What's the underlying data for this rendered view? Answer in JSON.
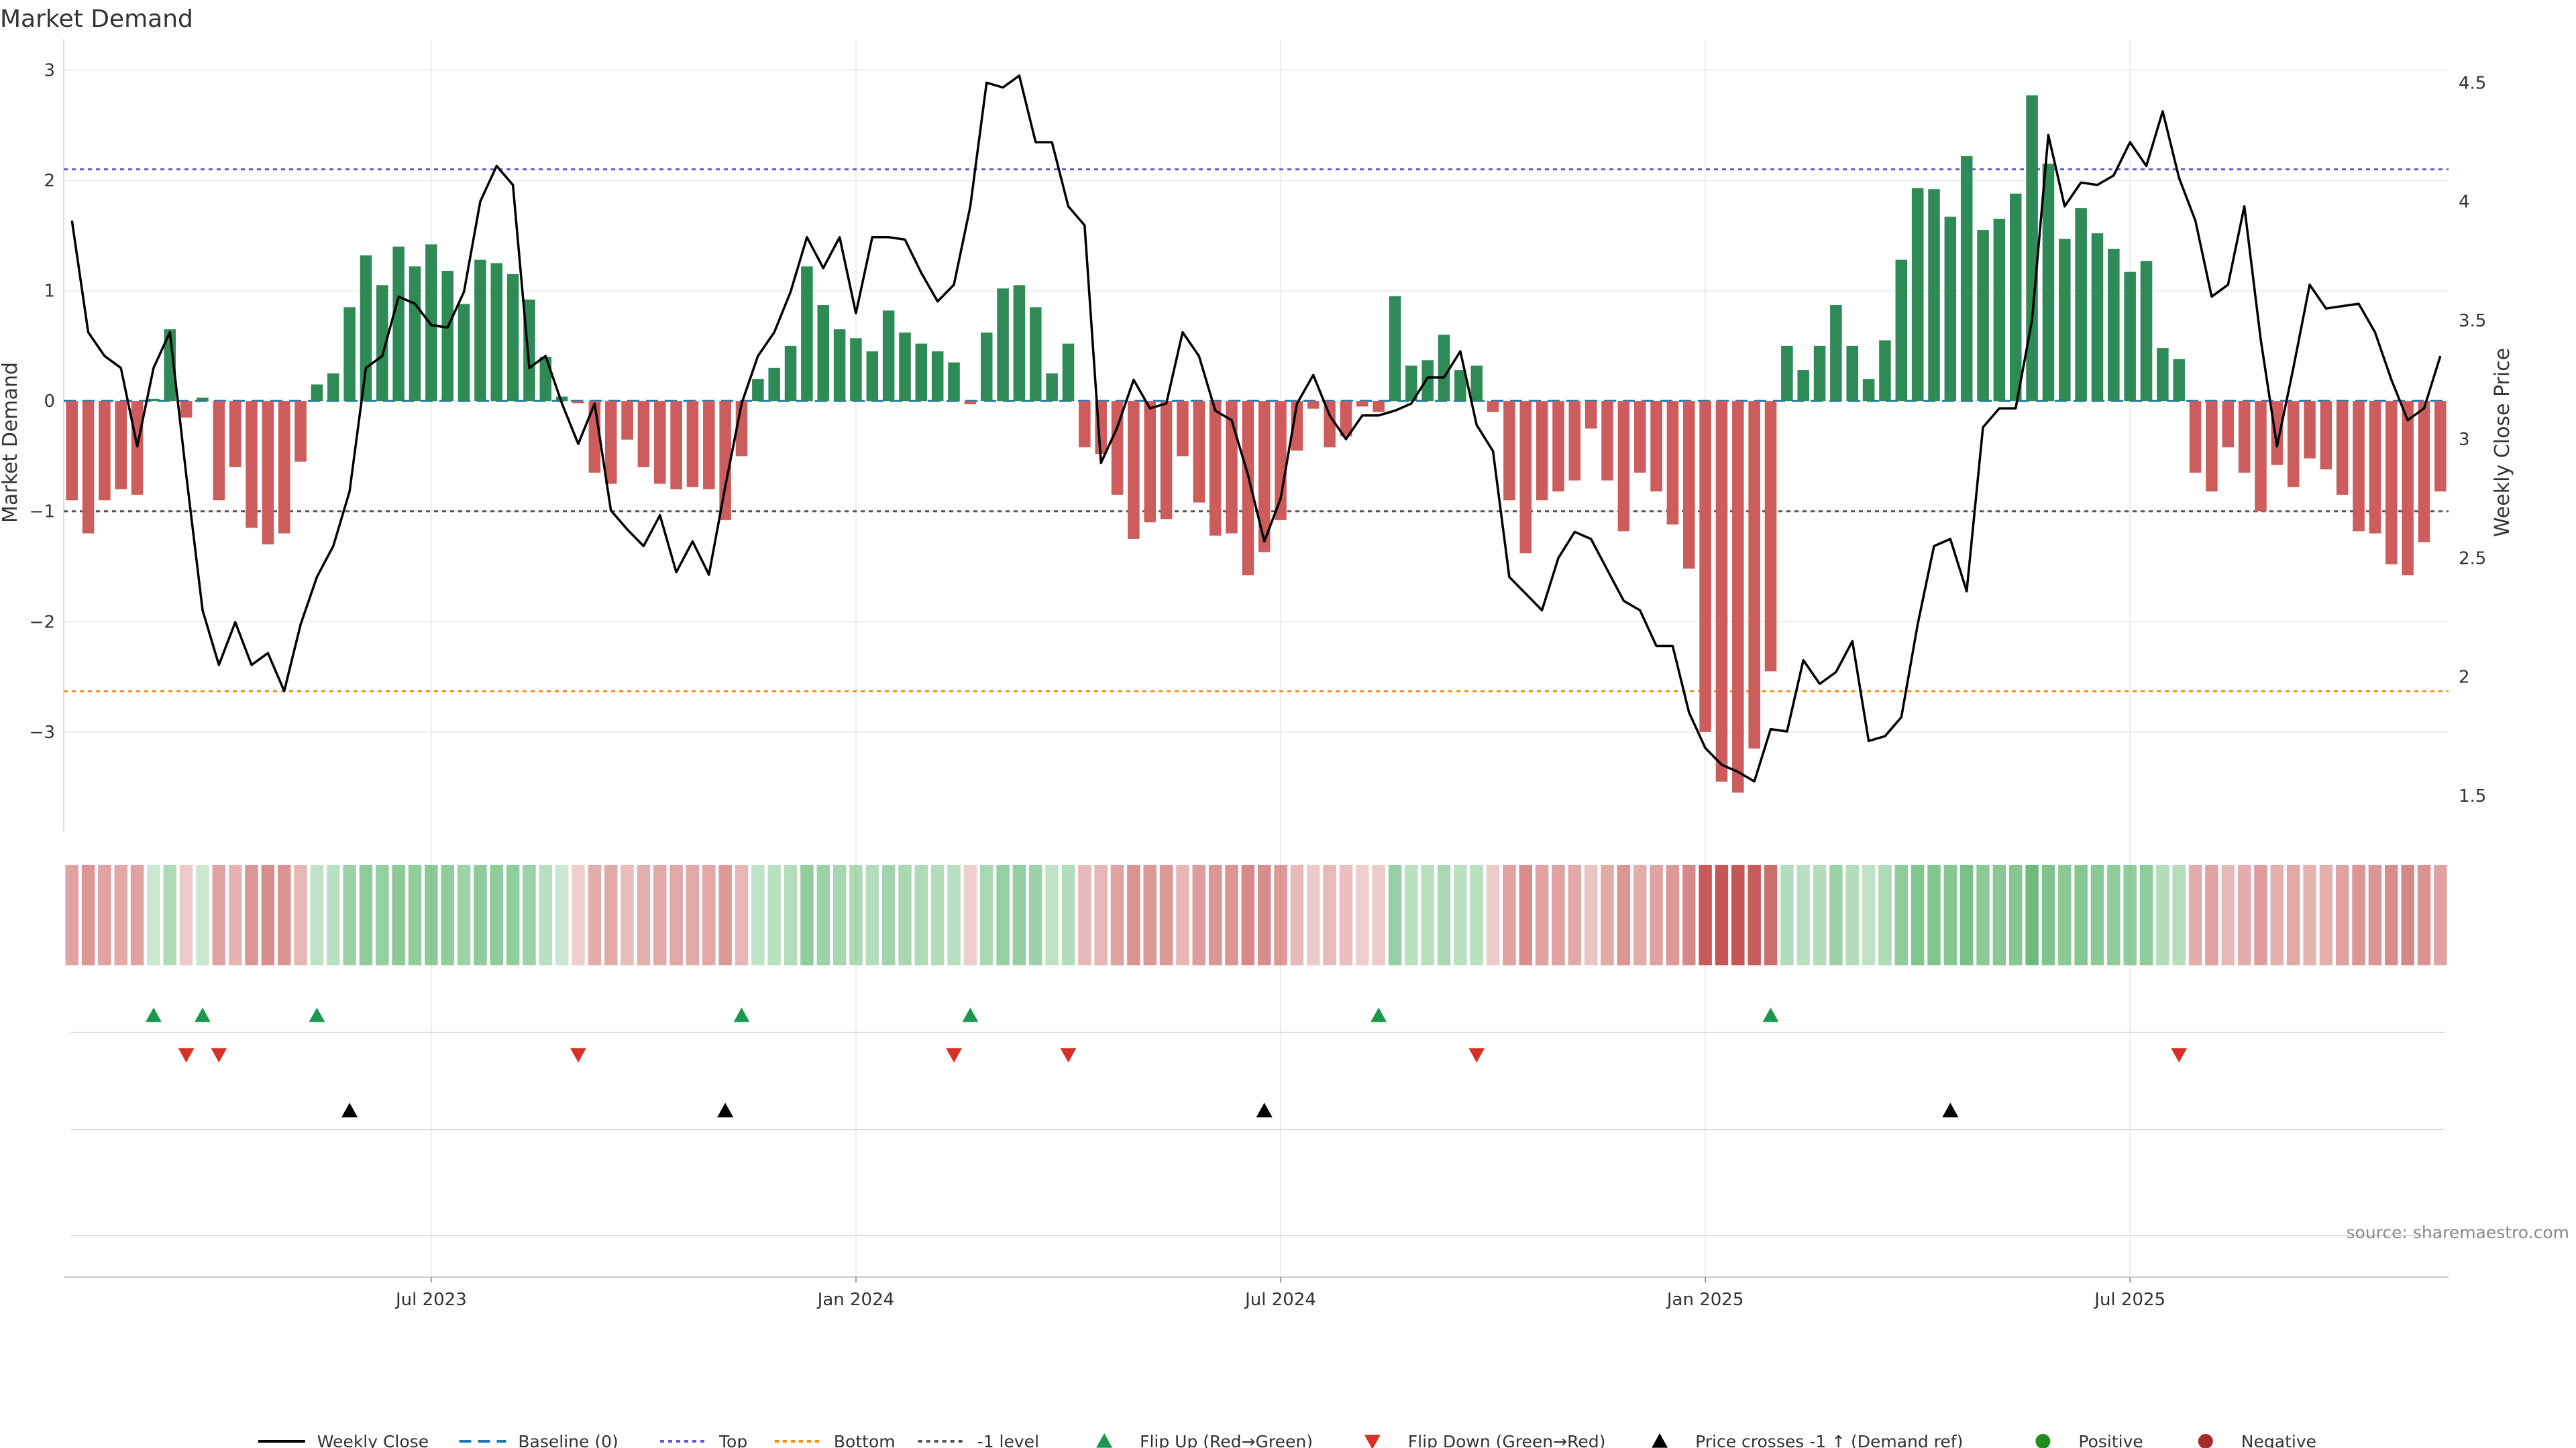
{
  "chart_data": {
    "type": "bar",
    "title": "Market Demand",
    "y_left_label": "Market Demand",
    "y_right_label": "Weekly Close Price",
    "y_left_range": [
      -3.9,
      3.1
    ],
    "y_right_range": [
      1.35,
      4.6
    ],
    "y_left_ticks": [
      {
        "v": 3,
        "t": "3"
      },
      {
        "v": 2,
        "t": "2"
      },
      {
        "v": 1,
        "t": "1"
      },
      {
        "v": 0,
        "t": "0"
      },
      {
        "v": -1,
        "t": "−1"
      },
      {
        "v": -2,
        "t": "−2"
      },
      {
        "v": -3,
        "t": "−3"
      }
    ],
    "y_right_ticks": [
      {
        "v": 4.5,
        "t": "4.5"
      },
      {
        "v": 4,
        "t": "4"
      },
      {
        "v": 3.5,
        "t": "3.5"
      },
      {
        "v": 3,
        "t": "3"
      },
      {
        "v": 2.5,
        "t": "2.5"
      },
      {
        "v": 2,
        "t": "2"
      },
      {
        "v": 1.5,
        "t": "1.5"
      }
    ],
    "x_ticks": [
      {
        "week": 22,
        "t": "Jul 2023"
      },
      {
        "week": 48,
        "t": "Jan 2024"
      },
      {
        "week": 74,
        "t": "Jul 2024"
      },
      {
        "week": 100,
        "t": "Jan 2025"
      },
      {
        "week": 126,
        "t": "Jul 2025"
      }
    ],
    "reference_lines": [
      {
        "name": "Top",
        "value": 2.1,
        "color": "#6a5acd"
      },
      {
        "name": "Bottom",
        "value": -2.63,
        "color": "#ff8c00"
      },
      {
        "name": "-1 level",
        "value": -1,
        "color": "#555555"
      }
    ],
    "series": [
      {
        "name": "Market Demand",
        "values": [
          -0.9,
          -1.2,
          -0.9,
          -0.8,
          -0.85,
          0.02,
          0.65,
          -0.15,
          0.03,
          -0.9,
          -0.6,
          -1.15,
          -1.3,
          -1.2,
          -0.55,
          0.15,
          0.25,
          0.85,
          1.32,
          1.05,
          1.4,
          1.22,
          1.42,
          1.18,
          0.88,
          1.28,
          1.25,
          1.15,
          0.92,
          0.4,
          0.04,
          -0.02,
          -0.65,
          -0.75,
          -0.35,
          -0.6,
          -0.75,
          -0.8,
          -0.78,
          -0.8,
          -1.08,
          -0.5,
          0.2,
          0.3,
          0.5,
          1.22,
          0.87,
          0.65,
          0.57,
          0.45,
          0.82,
          0.62,
          0.52,
          0.45,
          0.35,
          -0.03,
          0.62,
          1.02,
          1.05,
          0.85,
          0.25,
          0.52,
          -0.42,
          -0.48,
          -0.85,
          -1.25,
          -1.1,
          -1.07,
          -0.5,
          -0.92,
          -1.22,
          -1.2,
          -1.58,
          -1.37,
          -1.08,
          -0.45,
          -0.07,
          -0.42,
          -0.32,
          -0.05,
          -0.1,
          0.95,
          0.32,
          0.37,
          0.6,
          0.28,
          0.32,
          -0.1,
          -0.9,
          -1.38,
          -0.9,
          -0.82,
          -0.72,
          -0.25,
          -0.72,
          -1.18,
          -0.65,
          -0.82,
          -1.12,
          -1.52,
          -3.0,
          -3.45,
          -3.55,
          -3.15,
          -2.45,
          0.5,
          0.28,
          0.5,
          0.87,
          0.5,
          0.2,
          0.55,
          1.28,
          1.93,
          1.92,
          1.67,
          2.22,
          1.55,
          1.65,
          1.88,
          2.77,
          2.15,
          1.47,
          1.75,
          1.52,
          1.38,
          1.17,
          1.27,
          0.48,
          0.38,
          -0.65,
          -0.82,
          -0.42,
          -0.65,
          -1.0,
          -0.58,
          -0.78,
          -0.52,
          -0.62,
          -0.85,
          -1.18,
          -1.2,
          -1.48,
          -1.58,
          -1.28,
          -0.82
        ]
      },
      {
        "name": "Weekly Close",
        "values": [
          3.92,
          3.45,
          3.35,
          3.3,
          2.97,
          3.3,
          3.45,
          2.85,
          2.28,
          2.05,
          2.23,
          2.05,
          2.1,
          1.94,
          2.22,
          2.42,
          2.55,
          2.78,
          3.3,
          3.35,
          3.6,
          3.57,
          3.48,
          3.47,
          3.62,
          4.0,
          4.15,
          4.07,
          3.3,
          3.35,
          3.15,
          2.98,
          3.15,
          2.7,
          2.62,
          2.55,
          2.68,
          2.44,
          2.57,
          2.43,
          2.8,
          3.15,
          3.35,
          3.45,
          3.62,
          3.85,
          3.72,
          3.85,
          3.53,
          3.85,
          3.85,
          3.84,
          3.7,
          3.58,
          3.65,
          3.98,
          4.5,
          4.48,
          4.53,
          4.25,
          4.25,
          3.98,
          3.9,
          2.9,
          3.05,
          3.25,
          3.13,
          3.15,
          3.45,
          3.35,
          3.12,
          3.08,
          2.85,
          2.57,
          2.75,
          3.15,
          3.27,
          3.1,
          3.0,
          3.1,
          3.1,
          3.12,
          3.15,
          3.26,
          3.26,
          3.37,
          3.06,
          2.95,
          2.42,
          2.35,
          2.28,
          2.5,
          2.61,
          2.58,
          2.45,
          2.32,
          2.28,
          2.13,
          2.13,
          1.85,
          1.7,
          1.63,
          1.6,
          1.56,
          1.78,
          1.77,
          2.07,
          1.97,
          2.02,
          2.15,
          1.73,
          1.75,
          1.83,
          2.22,
          2.55,
          2.58,
          2.36,
          3.05,
          3.13,
          3.13,
          3.5,
          4.28,
          3.98,
          4.08,
          4.07,
          4.11,
          4.25,
          4.15,
          4.38,
          4.1,
          3.92,
          3.6,
          3.65,
          3.98,
          3.42,
          2.97,
          3.3,
          3.65,
          3.55,
          3.56,
          3.57,
          3.45,
          3.25,
          3.08,
          3.13,
          3.35
        ]
      }
    ],
    "heat_strip_values": [
      -0.85,
      -1.05,
      -0.85,
      -0.75,
      -0.8,
      0.1,
      0.55,
      -0.15,
      0.1,
      -0.85,
      -0.55,
      -1.05,
      -1.15,
      -1.1,
      -0.5,
      0.3,
      0.35,
      0.8,
      1.05,
      0.95,
      1.1,
      1.0,
      1.1,
      1.0,
      0.85,
      1.05,
      1.05,
      1.0,
      0.85,
      0.35,
      0.1,
      -0.1,
      -0.65,
      -0.7,
      -0.4,
      -0.6,
      -0.7,
      -0.75,
      -0.7,
      -0.75,
      -1.0,
      -0.5,
      0.25,
      0.35,
      0.5,
      1.0,
      0.8,
      0.65,
      0.55,
      0.5,
      0.75,
      0.6,
      0.55,
      0.5,
      0.4,
      -0.1,
      0.6,
      0.9,
      0.95,
      0.8,
      0.3,
      0.5,
      -0.45,
      -0.5,
      -0.8,
      -1.1,
      -1.0,
      -1.0,
      -0.5,
      -0.9,
      -1.05,
      -1.05,
      -1.25,
      -1.15,
      -1.0,
      -0.45,
      -0.15,
      -0.45,
      -0.35,
      -0.1,
      -0.15,
      0.9,
      0.35,
      0.4,
      0.6,
      0.35,
      0.35,
      -0.15,
      -0.85,
      -1.15,
      -0.85,
      -0.8,
      -0.7,
      -0.3,
      -0.7,
      -1.05,
      -0.65,
      -0.8,
      -1.0,
      -1.25,
      -2.0,
      -2.1,
      -2.1,
      -2.0,
      -1.7,
      0.5,
      0.35,
      0.5,
      0.8,
      0.5,
      0.3,
      0.55,
      1.05,
      1.25,
      1.25,
      1.15,
      1.35,
      1.1,
      1.15,
      1.2,
      1.6,
      1.3,
      1.1,
      1.2,
      1.1,
      1.05,
      1.0,
      1.05,
      0.5,
      0.45,
      -0.65,
      -0.8,
      -0.45,
      -0.65,
      -0.95,
      -0.6,
      -0.75,
      -0.55,
      -0.6,
      -0.8,
      -1.05,
      -1.05,
      -1.2,
      -1.25,
      -1.1,
      -0.8
    ],
    "flip_up_weeks": [
      5,
      8,
      15,
      41,
      55,
      80,
      104
    ],
    "flip_down_weeks": [
      7,
      9,
      31,
      54,
      61,
      86,
      129
    ],
    "price_cross_weeks": [
      17,
      40,
      73,
      115
    ],
    "legend": [
      "Weekly Close",
      "Baseline (0)",
      "Top",
      "Bottom",
      "-1 level",
      "Flip Up (Red→Green)",
      "Flip Down (Green→Red)",
      "Price crosses -1 ↑ (Demand ref)",
      "Positive",
      "Negative"
    ],
    "grid": true,
    "legend_position": "bottom-center",
    "colors": {
      "positive": "#2e8b57",
      "negative": "#cd5c5c",
      "line": "#000000",
      "flip_up": "#1a9850",
      "flip_down": "#d73027",
      "baseline": "#1f77b4"
    }
  },
  "source_text": "source: sharemaestro.com"
}
